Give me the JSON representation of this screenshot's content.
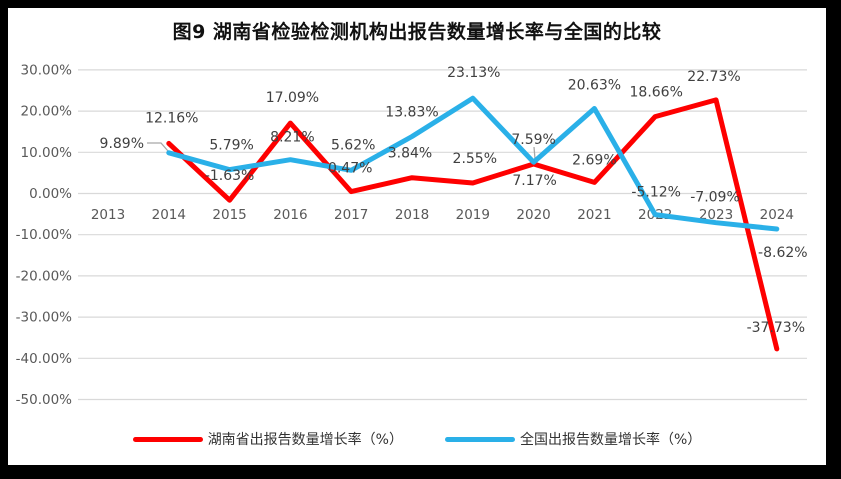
{
  "chart_data": {
    "type": "line",
    "title": "图9 湖南省检验检测机构出报告数量增长率与全国的比较",
    "categories": [
      "2013",
      "2014",
      "2015",
      "2016",
      "2017",
      "2018",
      "2019",
      "2020",
      "2021",
      "2022",
      "2023",
      "2024"
    ],
    "y_tick_labels": [
      "30.00%",
      "20.00%",
      "10.00%",
      "0.00%",
      "-10.00%",
      "-20.00%",
      "-30.00%",
      "-40.00%",
      "-50.00%"
    ],
    "y_tick_values": [
      30,
      20,
      10,
      0,
      -10,
      -20,
      -30,
      -40,
      -50
    ],
    "ylim": [
      -50,
      30
    ],
    "xlabel": "",
    "ylabel": "",
    "grid": true,
    "legend_position": "bottom",
    "series": [
      {
        "name": "湖南省出报告数量增长率（%）",
        "color": "#fe0000",
        "values": [
          null,
          12.16,
          -1.63,
          17.09,
          0.47,
          3.84,
          2.55,
          7.17,
          2.69,
          18.66,
          22.73,
          -37.73
        ],
        "point_labels": [
          null,
          "12.16%",
          "-1.63%",
          "17.09%",
          "0.47%",
          "3.84%",
          "2.55%",
          "7.17%",
          "2.69%",
          "18.66%",
          "22.73%",
          "-37.73%"
        ],
        "label_offsets": [
          null,
          [
            3,
            -26
          ],
          [
            0,
            -25
          ],
          [
            2,
            -26
          ],
          [
            -1,
            -24
          ],
          [
            -2,
            -25
          ],
          [
            2,
            -25
          ],
          [
            1,
            16
          ],
          [
            0,
            -23
          ],
          [
            1,
            -25
          ],
          [
            -2,
            -24
          ],
          [
            -1,
            -22
          ]
        ]
      },
      {
        "name": "全国出报告数量增长率（%）",
        "color": "#2ab0e8",
        "values": [
          null,
          9.89,
          5.79,
          8.21,
          5.62,
          13.83,
          23.13,
          7.59,
          20.63,
          -5.12,
          -7.09,
          -8.62
        ],
        "point_labels": [
          null,
          "9.89%",
          "5.79%",
          "8.21%",
          "5.62%",
          "13.83%",
          "23.13%",
          "7.59%",
          "20.63%",
          "-5.12%",
          "-7.09%",
          "-8.62%"
        ],
        "label_offsets": [
          null,
          [
            -47,
            -10
          ],
          [
            2,
            -25
          ],
          [
            2,
            -23
          ],
          [
            2,
            -26
          ],
          [
            0,
            -25
          ],
          [
            1,
            -26
          ],
          [
            0,
            -23
          ],
          [
            0,
            -24
          ],
          [
            1,
            -23
          ],
          [
            -1,
            -26
          ],
          [
            6,
            23
          ]
        ]
      }
    ],
    "leader_lines": [
      {
        "points": [
          [
            139,
            135
          ],
          [
            153,
            135
          ],
          [
            160,
            143
          ]
        ]
      },
      {
        "points": [
          [
            526,
            139
          ],
          [
            527,
            151
          ]
        ]
      }
    ],
    "colors": {
      "grid": "#d9d9d9",
      "axis_text": "#595959",
      "label_text": "#404040",
      "leader": "#a6a6a6",
      "title_text": "#111111",
      "panel_bg": "#ffffff",
      "frame_bg": "#000000"
    }
  }
}
